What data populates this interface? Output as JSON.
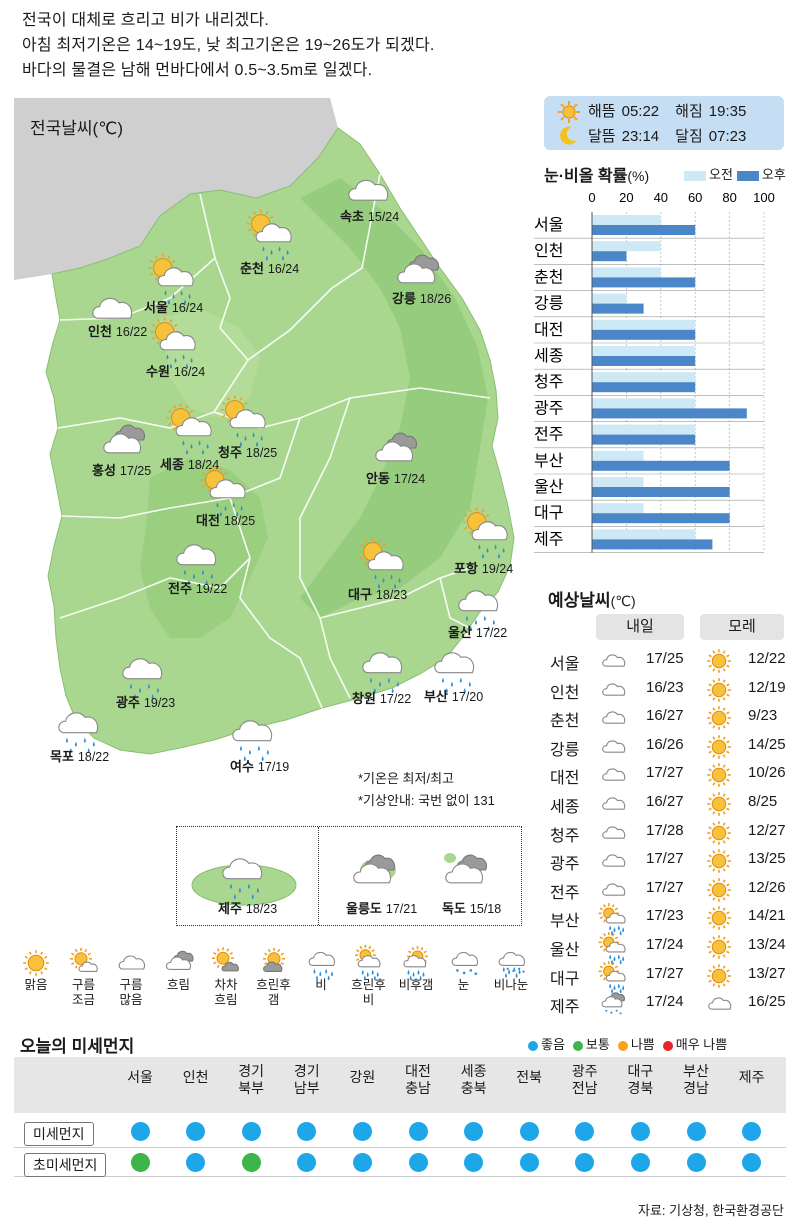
{
  "headline": [
    "전국이 대체로 흐리고 비가 내리겠다.",
    "아침 최저기온은 14~19도, 낮 최고기온은 19~26도가 되겠다.",
    "바다의 물결은 남해 먼바다에서 0.5~3.5m로 일겠다."
  ],
  "map": {
    "title": "전국날씨(℃)",
    "cities": [
      {
        "name": "속초",
        "temp": "15/24",
        "icon": "cloudy-icon"
      },
      {
        "name": "춘천",
        "temp": "16/24",
        "icon": "cloudy-rain-after-sun-icon"
      },
      {
        "name": "강릉",
        "temp": "18/26",
        "icon": "overcast-icon"
      },
      {
        "name": "서울",
        "temp": "16/24",
        "icon": "cloudy-rain-after-sun-icon"
      },
      {
        "name": "인천",
        "temp": "16/22",
        "icon": "cloudy-icon"
      },
      {
        "name": "수원",
        "temp": "16/24",
        "icon": "cloudy-rain-after-sun-icon"
      },
      {
        "name": "홍성",
        "temp": "17/25",
        "icon": "overcast-icon"
      },
      {
        "name": "세종",
        "temp": "18/24",
        "icon": "cloudy-rain-after-sun-icon"
      },
      {
        "name": "청주",
        "temp": "18/25",
        "icon": "cloudy-rain-after-sun-icon"
      },
      {
        "name": "안동",
        "temp": "17/24",
        "icon": "overcast-icon"
      },
      {
        "name": "대전",
        "temp": "18/25",
        "icon": "cloudy-rain-after-sun-icon"
      },
      {
        "name": "포항",
        "temp": "19/24",
        "icon": "cloudy-rain-after-sun-icon"
      },
      {
        "name": "전주",
        "temp": "19/22",
        "icon": "rain-icon"
      },
      {
        "name": "대구",
        "temp": "18/23",
        "icon": "cloudy-rain-after-sun-icon"
      },
      {
        "name": "울산",
        "temp": "17/22",
        "icon": "rain-icon"
      },
      {
        "name": "광주",
        "temp": "19/23",
        "icon": "rain-icon"
      },
      {
        "name": "창원",
        "temp": "17/22",
        "icon": "rain-icon"
      },
      {
        "name": "부산",
        "temp": "17/20",
        "icon": "rain-icon"
      },
      {
        "name": "목포",
        "temp": "18/22",
        "icon": "rain-icon"
      },
      {
        "name": "여수",
        "temp": "17/19",
        "icon": "rain-icon"
      },
      {
        "name": "제주",
        "temp": "18/23",
        "icon": "rain-icon"
      },
      {
        "name": "울릉도",
        "temp": "17/21",
        "icon": "overcast-icon"
      },
      {
        "name": "독도",
        "temp": "15/18",
        "icon": "overcast-icon"
      }
    ],
    "notes": [
      "*기온은 최저/최고",
      "*기상안내: 국번 없이 131"
    ]
  },
  "astro": {
    "sunrise_label": "해뜸",
    "sunrise": "05:22",
    "sunset_label": "해짐",
    "sunset": "19:35",
    "moonrise_label": "달뜸",
    "moonrise": "23:14",
    "moonset_label": "달짐",
    "moonset": "07:23"
  },
  "chart_data": {
    "type": "bar",
    "title": "눈·비올 확률",
    "unit": "(%)",
    "categories": [
      "서울",
      "인천",
      "춘천",
      "강릉",
      "대전",
      "세종",
      "청주",
      "광주",
      "전주",
      "부산",
      "울산",
      "대구",
      "제주"
    ],
    "series": [
      {
        "name": "오전",
        "color": "#cde9f6",
        "values": [
          40,
          40,
          40,
          20,
          60,
          60,
          60,
          60,
          60,
          30,
          30,
          30,
          60
        ]
      },
      {
        "name": "오후",
        "color": "#4a86c8",
        "values": [
          60,
          20,
          60,
          30,
          60,
          60,
          60,
          90,
          60,
          80,
          80,
          80,
          70
        ]
      }
    ],
    "xticks": [
      0,
      20,
      40,
      60,
      80,
      100
    ],
    "xlim": [
      0,
      100
    ],
    "orientation": "horizontal"
  },
  "forecast": {
    "title": "예상날씨",
    "unit": "(℃)",
    "col1": "내일",
    "col2": "모레",
    "rows": [
      {
        "city": "서울",
        "d1_icon": "cloudy-icon",
        "d1": "17/25",
        "d2_icon": "sunny-icon",
        "d2": "12/22"
      },
      {
        "city": "인천",
        "d1_icon": "cloudy-icon",
        "d1": "16/23",
        "d2_icon": "sunny-icon",
        "d2": "12/19"
      },
      {
        "city": "춘천",
        "d1_icon": "cloudy-icon",
        "d1": "16/27",
        "d2_icon": "sunny-icon",
        "d2": "9/23"
      },
      {
        "city": "강릉",
        "d1_icon": "cloudy-icon",
        "d1": "16/26",
        "d2_icon": "sunny-icon",
        "d2": "14/25"
      },
      {
        "city": "대전",
        "d1_icon": "cloudy-icon",
        "d1": "17/27",
        "d2_icon": "sunny-icon",
        "d2": "10/26"
      },
      {
        "city": "세종",
        "d1_icon": "cloudy-icon",
        "d1": "16/27",
        "d2_icon": "sunny-icon",
        "d2": "8/25"
      },
      {
        "city": "청주",
        "d1_icon": "cloudy-icon",
        "d1": "17/28",
        "d2_icon": "sunny-icon",
        "d2": "12/27"
      },
      {
        "city": "광주",
        "d1_icon": "cloudy-icon",
        "d1": "17/27",
        "d2_icon": "sunny-icon",
        "d2": "13/25"
      },
      {
        "city": "전주",
        "d1_icon": "cloudy-icon",
        "d1": "17/27",
        "d2_icon": "sunny-icon",
        "d2": "12/26"
      },
      {
        "city": "부산",
        "d1_icon": "rain-after-sun-icon",
        "d1": "17/23",
        "d2_icon": "sunny-icon",
        "d2": "14/21"
      },
      {
        "city": "울산",
        "d1_icon": "rain-after-sun-icon",
        "d1": "17/24",
        "d2_icon": "sunny-icon",
        "d2": "13/24"
      },
      {
        "city": "대구",
        "d1_icon": "rain-after-sun-icon",
        "d1": "17/27",
        "d2_icon": "sunny-icon",
        "d2": "13/27"
      },
      {
        "city": "제주",
        "d1_icon": "sleet-icon",
        "d1": "17/24",
        "d2_icon": "cloudy-icon",
        "d2": "16/25"
      }
    ]
  },
  "weather_legend": [
    {
      "label": "맑음",
      "icon": "sunny-icon"
    },
    {
      "label": "구름\n조금",
      "icon": "partly-cloudy-icon"
    },
    {
      "label": "구름\n많음",
      "icon": "cloudy-icon"
    },
    {
      "label": "흐림",
      "icon": "overcast-icon"
    },
    {
      "label": "차차\n흐림",
      "icon": "gradually-cloudy-icon"
    },
    {
      "label": "흐린후\n갬",
      "icon": "clearing-icon"
    },
    {
      "label": "비",
      "icon": "rain-icon"
    },
    {
      "label": "흐린후\n비",
      "icon": "rain-after-cloudy-icon"
    },
    {
      "label": "비후갬",
      "icon": "clearing-after-rain-icon"
    },
    {
      "label": "눈",
      "icon": "snow-icon"
    },
    {
      "label": "비나눈",
      "icon": "rain-or-snow-icon"
    }
  ],
  "dust": {
    "title": "오늘의 미세먼지",
    "legend": [
      {
        "label": "좋음",
        "color": "#1ea7e8"
      },
      {
        "label": "보통",
        "color": "#3db54a"
      },
      {
        "label": "나쁨",
        "color": "#f5a31a"
      },
      {
        "label": "매우 나쁨",
        "color": "#e8232a"
      }
    ],
    "regions": [
      "서울",
      "인천",
      "경기\n북부",
      "경기\n남부",
      "강원",
      "대전\n충남",
      "세종\n충북",
      "전북",
      "광주\n전남",
      "대구\n경북",
      "부산\n경남",
      "제주"
    ],
    "pm10_label": "미세먼지",
    "pm25_label": "초미세먼지",
    "pm10": [
      "좋음",
      "좋음",
      "좋음",
      "좋음",
      "좋음",
      "좋음",
      "좋음",
      "좋음",
      "좋음",
      "좋음",
      "좋음",
      "좋음"
    ],
    "pm25": [
      "보통",
      "좋음",
      "보통",
      "좋음",
      "좋음",
      "좋음",
      "좋음",
      "좋음",
      "좋음",
      "좋음",
      "좋음",
      "좋음"
    ]
  },
  "source": "자료: 기상청, 한국환경공단"
}
